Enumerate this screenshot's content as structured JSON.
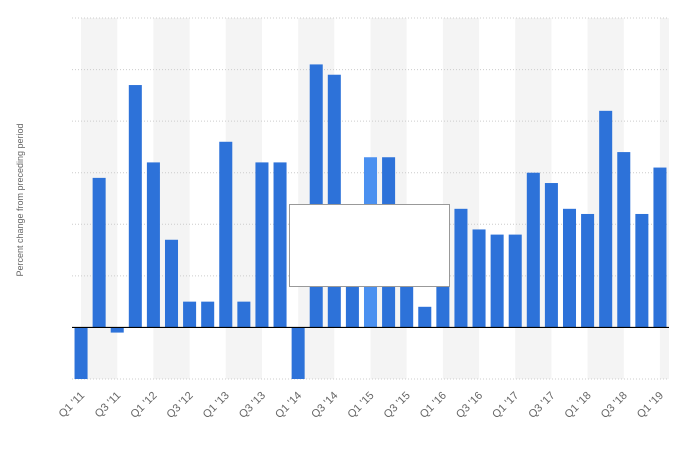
{
  "chart_data": {
    "type": "bar",
    "ylabel": "Percent change from preceding period",
    "xlabel": "",
    "title": "",
    "x_tick_labels": [
      "Q1 '11",
      "Q3 '11",
      "Q1 '12",
      "Q3 '12",
      "Q1 '13",
      "Q3 '13",
      "Q1 '14",
      "Q3 '14",
      "Q1 '15",
      "Q3 '15",
      "Q1 '16",
      "Q3 '16",
      "Q1 '17",
      "Q3 '17",
      "Q1 '18",
      "Q3 '18",
      "Q1 '19"
    ],
    "categories": [
      "Q1 '11",
      "Q2 '11",
      "Q3 '11",
      "Q4 '11",
      "Q1 '12",
      "Q2 '12",
      "Q3 '12",
      "Q4 '12",
      "Q1 '13",
      "Q2 '13",
      "Q3 '13",
      "Q4 '13",
      "Q1 '14",
      "Q2 '14",
      "Q3 '14",
      "Q4 '14",
      "Q1 '15",
      "Q2 '15",
      "Q3 '15",
      "Q4 '15",
      "Q1 '16",
      "Q2 '16",
      "Q3 '16",
      "Q4 '16",
      "Q1 '17",
      "Q2 '17",
      "Q3 '17",
      "Q4 '17",
      "Q1 '18",
      "Q2 '18",
      "Q3 '18",
      "Q4 '18",
      "Q1 '19"
    ],
    "values": [
      -1.0,
      2.9,
      -0.1,
      4.7,
      3.2,
      1.7,
      0.5,
      0.5,
      3.6,
      0.5,
      3.2,
      3.2,
      -1.0,
      5.1,
      4.9,
      1.9,
      3.3,
      3.3,
      1.3,
      0.4,
      2.0,
      2.3,
      1.9,
      1.8,
      1.8,
      3.0,
      2.8,
      2.3,
      2.2,
      4.2,
      3.4,
      2.2,
      3.1
    ],
    "highlighted_index": 16,
    "ylim": [
      -1,
      6
    ],
    "grid": true,
    "colors": {
      "bar": "#2d72d9",
      "highlight": "#4a90f0",
      "grid": "#cccccc",
      "band": "#f4f4f4",
      "axis": "#000000"
    }
  }
}
